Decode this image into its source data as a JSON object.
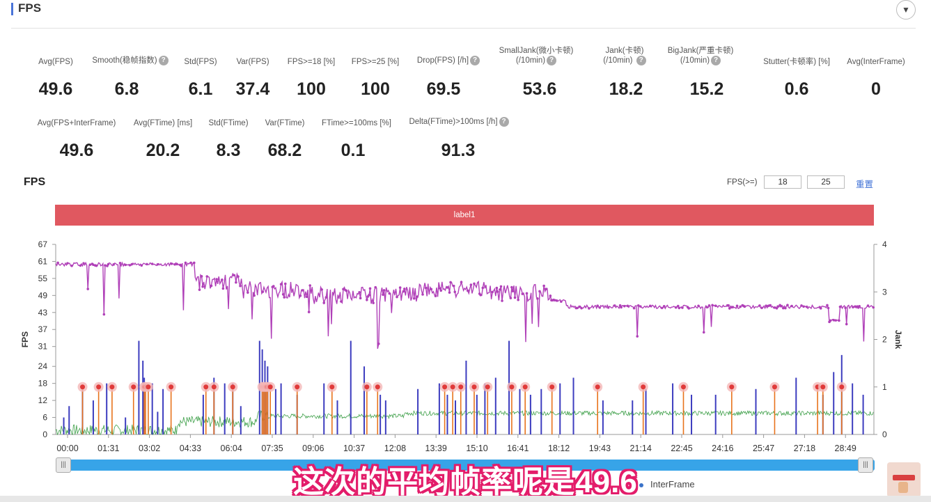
{
  "section": {
    "title": "FPS",
    "collapse_icon": "▼"
  },
  "metrics_row1": [
    {
      "label": "Avg(FPS)",
      "value": "49.6",
      "help": false
    },
    {
      "label": "Smooth(稳帧指数)",
      "value": "6.8",
      "help": true
    },
    {
      "label": "Std(FPS)",
      "value": "6.1",
      "help": false
    },
    {
      "label": "Var(FPS)",
      "value": "37.4",
      "help": false
    },
    {
      "label": "FPS>=18 [%]",
      "value": "100",
      "help": false
    },
    {
      "label": "FPS>=25 [%]",
      "value": "100",
      "help": false
    },
    {
      "label": "Drop(FPS) [/h]",
      "value": "69.5",
      "help": true
    },
    {
      "label": "SmallJank(微小卡顿)",
      "label2": "(/10min)",
      "value": "53.6",
      "help": true
    },
    {
      "label": "Jank(卡顿)",
      "label2": "(/10min)",
      "value": "18.2",
      "help": true
    },
    {
      "label": "BigJank(严重卡顿)",
      "label2": "(/10min)",
      "value": "15.2",
      "help": true
    },
    {
      "label": "Stutter(卡顿率) [%]",
      "value": "0.6",
      "help": false
    },
    {
      "label": "Avg(InterFrame)",
      "value": "0",
      "help": false
    }
  ],
  "metrics_row2": [
    {
      "label": "Avg(FPS+InterFrame)",
      "value": "49.6",
      "help": false
    },
    {
      "label": "Avg(FTime) [ms]",
      "value": "20.2",
      "help": false
    },
    {
      "label": "Std(FTime)",
      "value": "8.3",
      "help": false
    },
    {
      "label": "Var(FTime)",
      "value": "68.2",
      "help": false
    },
    {
      "label": "FTime>=100ms [%]",
      "value": "0.1",
      "help": false
    },
    {
      "label": "Delta(FTime)>100ms [/h]",
      "value": "91.3",
      "help": true
    }
  ],
  "chart_header": {
    "title": "FPS",
    "threshold_label": "FPS(>=)",
    "threshold_1": "18",
    "threshold_2": "25",
    "reset_label": "重置"
  },
  "band": {
    "label": "label1",
    "color": "#e05860"
  },
  "legend": {
    "interframe": "InterFrame"
  },
  "subtitle": "这次的平均帧率呢是49.6",
  "chart_data": {
    "type": "line",
    "x_tick_labels": [
      "00:00",
      "01:31",
      "03:02",
      "04:33",
      "06:04",
      "07:35",
      "09:06",
      "10:37",
      "12:08",
      "13:39",
      "15:10",
      "16:41",
      "18:12",
      "19:43",
      "21:14",
      "22:45",
      "24:16",
      "25:47",
      "27:18",
      "28:49"
    ],
    "y_left_label": "FPS",
    "y_left_ticks": [
      0,
      6,
      12,
      18,
      24,
      31,
      37,
      43,
      49,
      55,
      61,
      67
    ],
    "y_left_range": [
      0,
      67
    ],
    "y_right_label": "Jank",
    "y_right_ticks": [
      0,
      1,
      2,
      3,
      4
    ],
    "y_right_range": [
      0,
      4
    ],
    "x_range_minutes": [
      0,
      30.5
    ],
    "series": [
      {
        "color": "#b040b8",
        "axis": "left",
        "segments": [
          {
            "from": 0.0,
            "to": 5.2,
            "level": 60
          },
          {
            "from": 5.2,
            "to": 7.0,
            "level": 54
          },
          {
            "from": 7.0,
            "to": 9.5,
            "level": 51
          },
          {
            "from": 9.5,
            "to": 12.0,
            "level": 49
          },
          {
            "from": 12.0,
            "to": 13.5,
            "level": 49
          },
          {
            "from": 13.5,
            "to": 16.0,
            "level": 51
          },
          {
            "from": 16.0,
            "to": 18.5,
            "level": 50
          },
          {
            "from": 18.5,
            "to": 19.0,
            "level": 47
          },
          {
            "from": 19.0,
            "to": 28.8,
            "level": 45
          },
          {
            "from": 28.8,
            "to": 29.2,
            "level": 40
          },
          {
            "from": 29.2,
            "to": 30.5,
            "level": 45
          }
        ]
      },
      {
        "color": "#3fa04a",
        "axis": "left",
        "segments": [
          {
            "from": 0.0,
            "to": 4.5,
            "level": 1.5
          },
          {
            "from": 4.5,
            "to": 7.5,
            "level": 4.5
          },
          {
            "from": 7.5,
            "to": 13.0,
            "level": 6.5
          },
          {
            "from": 13.0,
            "to": 19.0,
            "level": 7.5
          },
          {
            "from": 19.0,
            "to": 30.5,
            "level": 7.5
          }
        ]
      },
      {
        "color": "#3c3cbf",
        "axis": "left",
        "spikes_at": [
          0.3,
          0.5,
          1.0,
          1.4,
          1.9,
          2.6,
          3.1,
          3.25,
          3.3,
          3.6,
          3.8,
          4.0,
          5.5,
          5.9,
          6.3,
          6.6,
          6.9,
          7.6,
          7.7,
          7.8,
          7.9,
          8.2,
          8.4,
          9.0,
          10.0,
          10.5,
          11.0,
          11.5,
          12.1,
          12.3,
          13.5,
          14.3,
          14.6,
          14.9,
          15.3,
          15.7,
          16.0,
          16.4,
          16.9,
          17.3,
          17.7,
          18.1,
          18.8,
          19.3,
          20.4,
          21.5,
          22.0,
          23.0,
          23.7,
          24.6,
          26.1,
          27.6,
          28.6,
          29.0,
          29.3,
          29.7,
          30.1
        ],
        "spike_heights": [
          6,
          10,
          16,
          12,
          18,
          6,
          33,
          26,
          20,
          18,
          8,
          16,
          14,
          20,
          18,
          18,
          10,
          33,
          30,
          26,
          24,
          16,
          18,
          14,
          18,
          12,
          33,
          24,
          14,
          12,
          16,
          18,
          14,
          12,
          26,
          14,
          18,
          20,
          33,
          16,
          14,
          16,
          18,
          20,
          12,
          12,
          16,
          18,
          14,
          14,
          16,
          20,
          14,
          22,
          28,
          18,
          14
        ]
      },
      {
        "color": "#e8731c",
        "axis": "right",
        "jank_points_at": [
          1.0,
          1.6,
          2.1,
          2.9,
          3.3,
          3.35,
          3.45,
          4.3,
          5.6,
          5.9,
          6.6,
          7.7,
          7.75,
          7.8,
          7.85,
          7.9,
          8.0,
          9.0,
          10.3,
          11.6,
          12.0,
          14.5,
          14.8,
          15.1,
          15.6,
          16.1,
          17.0,
          17.5,
          18.5,
          20.2,
          21.9,
          23.4,
          25.2,
          26.8,
          28.4,
          28.6,
          29.3
        ],
        "jank_level": 1
      }
    ]
  }
}
